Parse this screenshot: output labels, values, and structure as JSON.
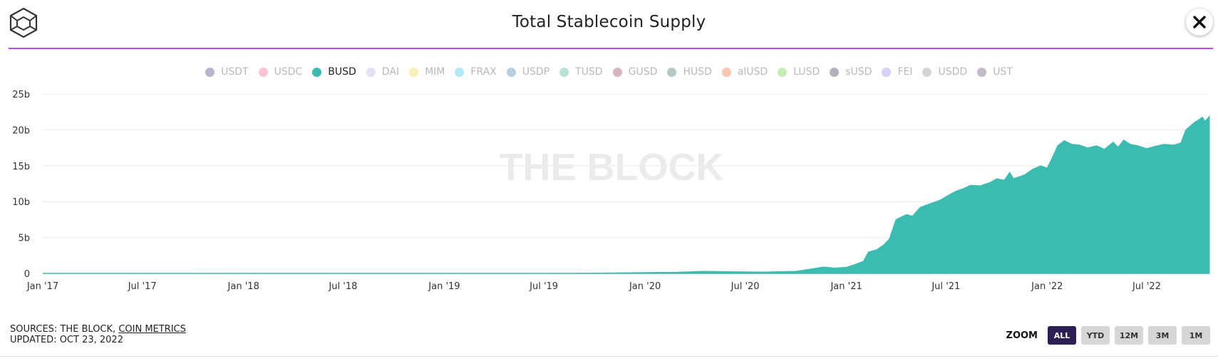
{
  "header": {
    "title": "Total Stablecoin Supply",
    "logo_icon": "cube-logo-icon",
    "close_icon": "close-icon"
  },
  "legend": {
    "items": [
      {
        "label": "USDT",
        "color": "#b9b3cc",
        "active": false
      },
      {
        "label": "USDC",
        "color": "#f7c4d0",
        "active": false
      },
      {
        "label": "BUSD",
        "color": "#3cbbb1",
        "active": true
      },
      {
        "label": "DAI",
        "color": "#e6e0f3",
        "active": false
      },
      {
        "label": "MIM",
        "color": "#fbefb6",
        "active": false
      },
      {
        "label": "FRAX",
        "color": "#b3e9f6",
        "active": false
      },
      {
        "label": "USDP",
        "color": "#b6cfe2",
        "active": false
      },
      {
        "label": "TUSD",
        "color": "#b8e2d8",
        "active": false
      },
      {
        "label": "GUSD",
        "color": "#d8b3c0",
        "active": false
      },
      {
        "label": "HUSD",
        "color": "#b7c9c6",
        "active": false
      },
      {
        "label": "alUSD",
        "color": "#f8c5ae",
        "active": false
      },
      {
        "label": "LUSD",
        "color": "#c5ecb3",
        "active": false
      },
      {
        "label": "sUSD",
        "color": "#b3b0be",
        "active": false
      },
      {
        "label": "FEI",
        "color": "#d9d0f3",
        "active": false
      },
      {
        "label": "USDD",
        "color": "#d5d5d5",
        "active": false
      },
      {
        "label": "UST",
        "color": "#c3bbcb",
        "active": false
      }
    ]
  },
  "watermark": "THE BLOCK",
  "chart_data": {
    "type": "area",
    "title": "Total Stablecoin Supply",
    "xlabel": "",
    "ylabel": "",
    "series": [
      {
        "name": "BUSD",
        "color": "#3cbbb1",
        "points": [
          [
            "2017-01-01",
            0
          ],
          [
            "2019-09-01",
            0.02
          ],
          [
            "2019-12-01",
            0.1
          ],
          [
            "2020-03-01",
            0.18
          ],
          [
            "2020-04-15",
            0.3
          ],
          [
            "2020-06-01",
            0.25
          ],
          [
            "2020-08-01",
            0.2
          ],
          [
            "2020-10-01",
            0.3
          ],
          [
            "2020-11-01",
            0.65
          ],
          [
            "2020-11-20",
            0.9
          ],
          [
            "2020-12-10",
            0.75
          ],
          [
            "2021-01-01",
            0.85
          ],
          [
            "2021-01-15",
            1.2
          ],
          [
            "2021-02-01",
            1.7
          ],
          [
            "2021-02-10",
            3.0
          ],
          [
            "2021-02-25",
            3.3
          ],
          [
            "2021-03-10",
            4.0
          ],
          [
            "2021-03-20",
            4.8
          ],
          [
            "2021-04-01",
            7.5
          ],
          [
            "2021-04-20",
            8.2
          ],
          [
            "2021-05-01",
            8.0
          ],
          [
            "2021-05-15",
            9.2
          ],
          [
            "2021-06-01",
            9.7
          ],
          [
            "2021-06-20",
            10.2
          ],
          [
            "2021-07-01",
            10.7
          ],
          [
            "2021-07-20",
            11.5
          ],
          [
            "2021-08-01",
            11.8
          ],
          [
            "2021-08-15",
            12.3
          ],
          [
            "2021-09-01",
            12.2
          ],
          [
            "2021-09-20",
            12.7
          ],
          [
            "2021-10-01",
            13.2
          ],
          [
            "2021-10-15",
            13.0
          ],
          [
            "2021-10-25",
            14.1
          ],
          [
            "2021-11-01",
            13.2
          ],
          [
            "2021-11-20",
            13.7
          ],
          [
            "2021-12-05",
            14.5
          ],
          [
            "2021-12-20",
            15.0
          ],
          [
            "2022-01-01",
            14.7
          ],
          [
            "2022-01-10",
            16.1
          ],
          [
            "2022-01-20",
            17.8
          ],
          [
            "2022-02-01",
            18.5
          ],
          [
            "2022-02-15",
            18.0
          ],
          [
            "2022-03-01",
            17.9
          ],
          [
            "2022-03-15",
            17.5
          ],
          [
            "2022-04-01",
            17.8
          ],
          [
            "2022-04-15",
            17.3
          ],
          [
            "2022-05-01",
            18.3
          ],
          [
            "2022-05-10",
            17.6
          ],
          [
            "2022-05-20",
            18.6
          ],
          [
            "2022-06-01",
            18.0
          ],
          [
            "2022-06-15",
            17.8
          ],
          [
            "2022-07-01",
            17.4
          ],
          [
            "2022-07-15",
            17.7
          ],
          [
            "2022-08-01",
            18.0
          ],
          [
            "2022-08-20",
            17.9
          ],
          [
            "2022-09-01",
            18.2
          ],
          [
            "2022-09-10",
            20.0
          ],
          [
            "2022-09-25",
            21.0
          ],
          [
            "2022-10-05",
            21.5
          ],
          [
            "2022-10-10",
            21.8
          ],
          [
            "2022-10-15",
            21.2
          ],
          [
            "2022-10-23",
            21.9
          ]
        ]
      }
    ],
    "x_ticks": [
      "Jan '17",
      "Jul '17",
      "Jan '18",
      "Jul '18",
      "Jan '19",
      "Jul '19",
      "Jan '20",
      "Jul '20",
      "Jan '21",
      "Jul '21",
      "Jan '22",
      "Jul '22"
    ],
    "x_tick_dates": [
      "2017-01-01",
      "2017-07-01",
      "2018-01-01",
      "2018-07-01",
      "2019-01-01",
      "2019-07-01",
      "2020-01-01",
      "2020-07-01",
      "2021-01-01",
      "2021-07-01",
      "2022-01-01",
      "2022-07-01"
    ],
    "y_ticks": [
      {
        "value": 0,
        "label": "0"
      },
      {
        "value": 5,
        "label": "5b"
      },
      {
        "value": 10,
        "label": "10b"
      },
      {
        "value": 15,
        "label": "15b"
      },
      {
        "value": 20,
        "label": "20b"
      },
      {
        "value": 25,
        "label": "25b"
      }
    ],
    "xlim": [
      "2017-01-01",
      "2022-10-23"
    ],
    "ylim": [
      0,
      25
    ],
    "grid": true
  },
  "footer": {
    "sources_prefix": "SOURCES: THE BLOCK, ",
    "sources_link": "COIN METRICS",
    "updated": "UPDATED: OCT 23, 2022"
  },
  "zoom": {
    "label": "ZOOM",
    "buttons": [
      {
        "label": "ALL",
        "active": true
      },
      {
        "label": "YTD",
        "active": false
      },
      {
        "label": "12M",
        "active": false
      },
      {
        "label": "3M",
        "active": false
      },
      {
        "label": "1M",
        "active": false
      }
    ]
  }
}
